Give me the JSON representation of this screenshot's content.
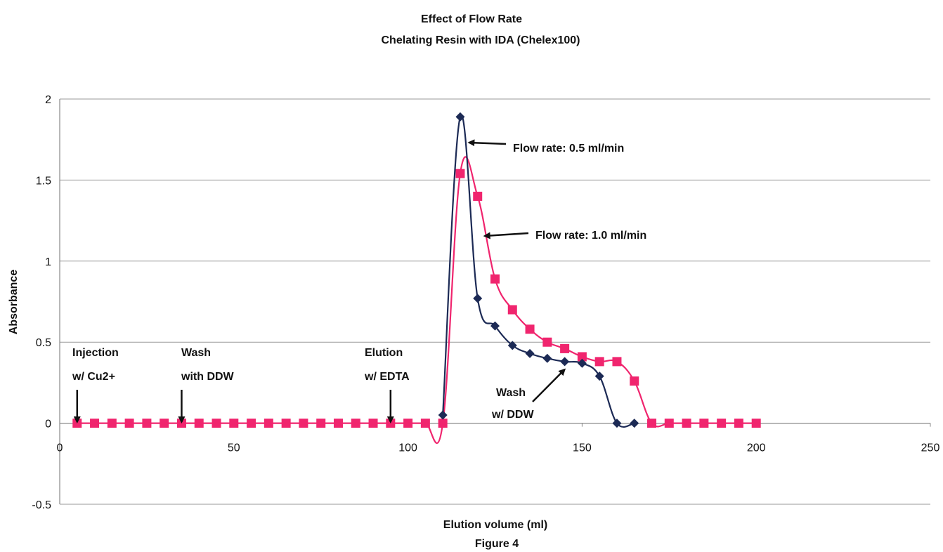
{
  "chart_data": {
    "type": "line",
    "title": "Effect of Flow Rate",
    "subtitle": "Chelating Resin with IDA (Chelex100)",
    "xlabel": "Elution volume (ml)",
    "ylabel": "Absorbance",
    "caption": "Figure 4",
    "xlim": [
      0,
      250
    ],
    "ylim": [
      -0.5,
      2
    ],
    "x_ticks": [
      0,
      50,
      100,
      150,
      200,
      250
    ],
    "y_ticks": [
      -0.5,
      0,
      0.5,
      1,
      1.5,
      2
    ],
    "x_tick_labels": [
      "0",
      "50",
      "100",
      "150",
      "200",
      "250"
    ],
    "y_tick_labels": [
      "-0.5",
      "0",
      "0.5",
      "1",
      "1.5",
      "2"
    ],
    "grid": "horizontal",
    "series": [
      {
        "name": "Flow rate: 0.5 ml/min",
        "color": "#1c2a55",
        "marker": "diamond",
        "x": [
          110,
          115,
          120,
          125,
          130,
          135,
          140,
          145,
          150,
          155,
          160,
          165
        ],
        "y": [
          0.05,
          1.89,
          0.77,
          0.6,
          0.48,
          0.43,
          0.4,
          0.38,
          0.37,
          0.29,
          0.0,
          0.0
        ]
      },
      {
        "name": "Flow rate: 1.0 ml/min",
        "color": "#f0256e",
        "marker": "square",
        "x": [
          5,
          10,
          15,
          20,
          25,
          30,
          35,
          40,
          45,
          50,
          55,
          60,
          65,
          70,
          75,
          80,
          85,
          90,
          95,
          100,
          105,
          110,
          115,
          120,
          125,
          130,
          135,
          140,
          145,
          150,
          155,
          160,
          165,
          170,
          175,
          180,
          185,
          190,
          195,
          200
        ],
        "y": [
          0,
          0,
          0,
          0,
          0,
          0,
          0,
          0,
          0,
          0,
          0,
          0,
          0,
          0,
          0,
          0,
          0,
          0,
          0,
          0,
          0,
          0,
          1.54,
          1.4,
          0.89,
          0.7,
          0.58,
          0.5,
          0.46,
          0.41,
          0.38,
          0.38,
          0.26,
          0,
          0,
          0,
          0,
          0,
          0,
          0
        ]
      }
    ],
    "annotations": [
      {
        "lines": [
          "Injection",
          "w/ Cu2+"
        ],
        "arrow_x": 5
      },
      {
        "lines": [
          "Wash",
          "with DDW"
        ],
        "arrow_x": 35
      },
      {
        "lines": [
          "Elution",
          "w/ EDTA"
        ],
        "arrow_x": 95
      },
      {
        "lines": [
          "Wash",
          "w/ DDW"
        ]
      }
    ]
  }
}
